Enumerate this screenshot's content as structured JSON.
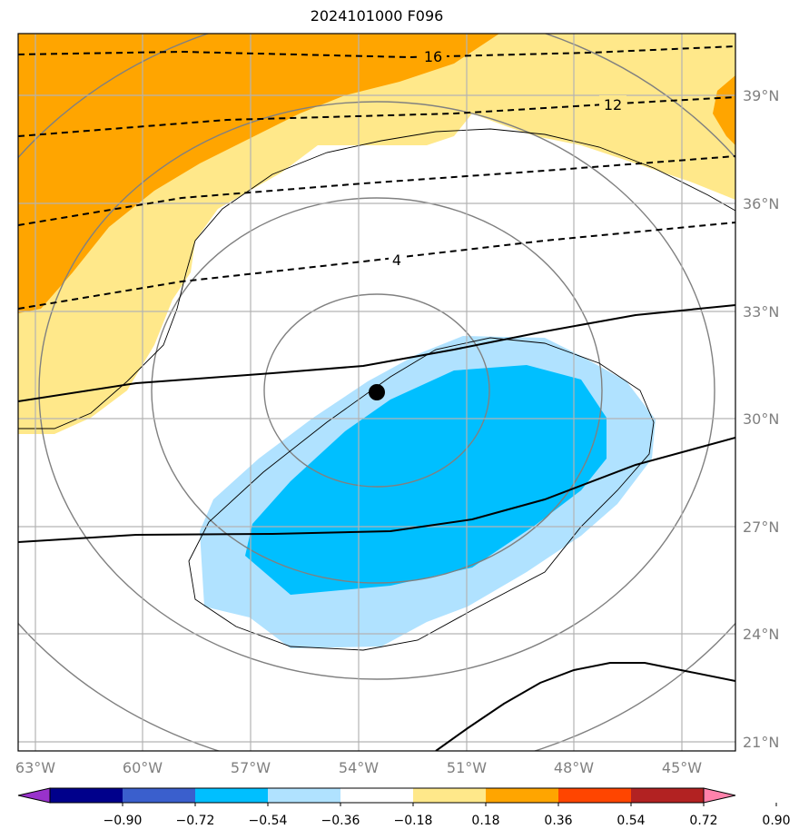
{
  "title": "2024101000 F096",
  "map": {
    "lon_labels": [
      "63°W",
      "60°W",
      "57°W",
      "54°W",
      "51°W",
      "48°W",
      "45°W"
    ],
    "lat_labels": [
      "39°N",
      "36°N",
      "33°N",
      "30°N",
      "27°N",
      "24°N",
      "21°N"
    ],
    "contour_labels": [
      "16",
      "12",
      "4"
    ],
    "storm_center": "black dot marker"
  },
  "colorbar": {
    "tick_labels": [
      "−0.90",
      "−0.72",
      "−0.54",
      "−0.36",
      "−0.18",
      "0.18",
      "0.36",
      "0.54",
      "0.72",
      "0.90"
    ],
    "colors": [
      "#9932cc",
      "#00008b",
      "#3a5fcd",
      "#00bfff",
      "#b0e2ff",
      "#ffffff",
      "#ffe88a",
      "#ffa500",
      "#ff4500",
      "#b22222",
      "#ff82ab"
    ]
  }
}
